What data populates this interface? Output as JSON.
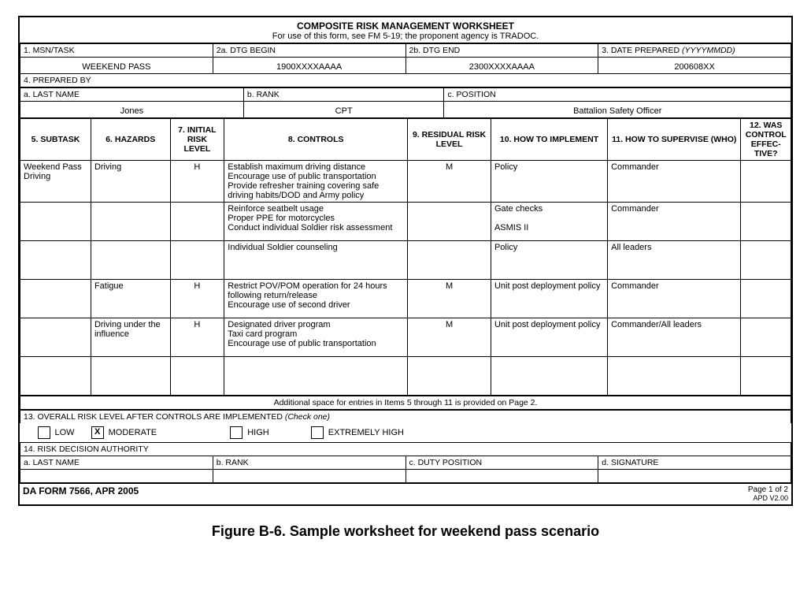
{
  "title": "COMPOSITE RISK MANAGEMENT WORKSHEET",
  "subtitle": "For use of this form, see FM 5-19; the proponent agency is TRADOC.",
  "fields": {
    "f1_label": "1. MSN/TASK",
    "f1_value": "WEEKEND PASS",
    "f2a_label": "2a. DTG BEGIN",
    "f2a_value": "1900XXXXAAAA",
    "f2b_label": "2b. DTG END",
    "f2b_value": "2300XXXXAAAA",
    "f3_label": "3. DATE PREPARED (YYYYMMDD)",
    "f3_value": "200608XX",
    "f4_label": "4. PREPARED BY",
    "fa_label": "a. LAST NAME",
    "fa_value": "Jones",
    "fb_label": "b. RANK",
    "fb_value": "CPT",
    "fc_label": "c. POSITION",
    "fc_value": "Battalion Safety Officer"
  },
  "cols": {
    "c5": "5. SUBTASK",
    "c6": "6. HAZARDS",
    "c7": "7. INITIAL RISK LEVEL",
    "c8": "8. CONTROLS",
    "c9": "9. RESIDUAL RISK LEVEL",
    "c10": "10. HOW TO IMPLEMENT",
    "c11": "11. HOW TO SUPERVISE (WHO)",
    "c12": "12. WAS CONTROL EFFEC-TIVE?"
  },
  "rows": [
    {
      "subtask": "Weekend Pass Driving",
      "hazard": "Driving",
      "irl": "H",
      "controls": "Establish maximum driving distance\nEncourage use of public transportation\nProvide refresher training covering safe driving habits/DOD and Army policy",
      "rrl": "M",
      "implement": "Policy",
      "supervise": "Commander"
    },
    {
      "subtask": "",
      "hazard": "",
      "irl": "",
      "controls": "Reinforce seatbelt usage\nProper PPE for motorcycles\nConduct individual Soldier risk assessment",
      "rrl": "",
      "implement": "Gate checks\n\nASMIS II",
      "supervise": "Commander"
    },
    {
      "subtask": "",
      "hazard": "",
      "irl": "",
      "controls": "Individual Soldier counseling",
      "rrl": "",
      "implement": "Policy",
      "supervise": "All leaders"
    },
    {
      "subtask": "",
      "hazard": "Fatigue",
      "irl": "H",
      "controls": "Restrict POV/POM operation for 24 hours following return/release\nEncourage use of second driver",
      "rrl": "M",
      "implement": "Unit post deployment policy",
      "supervise": "Commander"
    },
    {
      "subtask": "",
      "hazard": "Driving under the influence",
      "irl": "H",
      "controls": "Designated driver program\nTaxi card program\nEncourage use of public transportation",
      "rrl": "M",
      "implement": "Unit post deployment policy",
      "supervise": "Commander/All leaders"
    },
    {
      "subtask": "",
      "hazard": "",
      "irl": "",
      "controls": "",
      "rrl": "",
      "implement": "",
      "supervise": ""
    }
  ],
  "addl_space": "Additional space for entries in Items 5 through 11 is provided on Page 2.",
  "risk": {
    "label": "13. OVERALL RISK LEVEL AFTER CONTROLS ARE IMPLEMENTED (Check one)",
    "low": "LOW",
    "moderate": "MODERATE",
    "high": "HIGH",
    "exhigh": "EXTREMELY HIGH",
    "checked": "moderate"
  },
  "auth": {
    "label": "14. RISK DECISION AUTHORITY",
    "a": "a. LAST NAME",
    "b": "b. RANK",
    "c": "c. DUTY POSITION",
    "d": "d. SIGNATURE"
  },
  "footer": {
    "form": "DA FORM 7566, APR 2005",
    "page": "Page 1 of 2",
    "ver": "APD V2.00"
  },
  "caption": "Figure B-6. Sample worksheet for weekend pass scenario"
}
